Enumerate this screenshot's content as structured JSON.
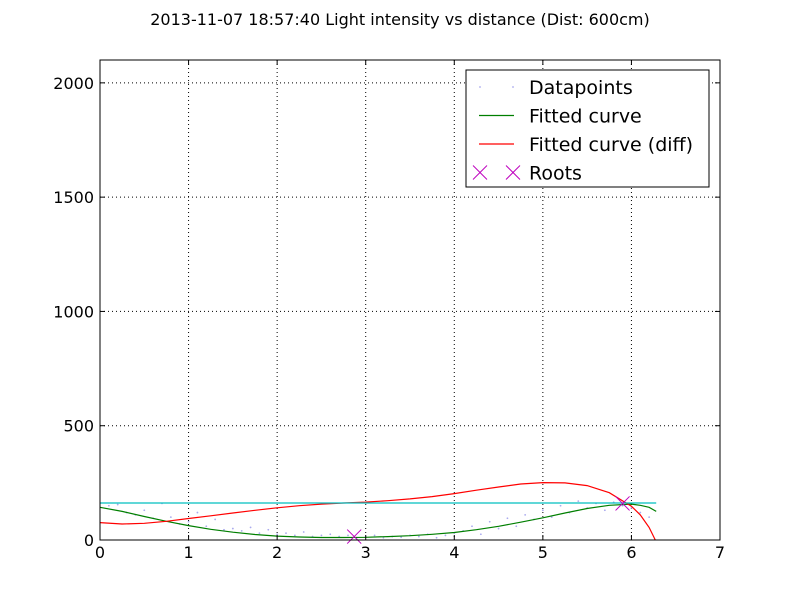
{
  "chart_data": {
    "type": "scatter",
    "title": "2013-11-07 18:57:40 Light intensity vs distance (Dist: 600cm)",
    "xlabel": "",
    "ylabel": "",
    "xlim": [
      0,
      7
    ],
    "ylim": [
      0,
      2100
    ],
    "xticks": [
      0,
      1,
      2,
      3,
      4,
      5,
      6,
      7
    ],
    "yticks": [
      0,
      500,
      1000,
      1500,
      2000
    ],
    "xtick_labels": [
      "0",
      "1",
      "2",
      "3",
      "4",
      "5",
      "6",
      "7"
    ],
    "ytick_labels": [
      "0",
      "500",
      "1000",
      "1500",
      "2000"
    ],
    "grid": true,
    "legend_position": "top-right",
    "series": [
      {
        "name": "Datapoints",
        "kind": "scatter",
        "color": "#aaaaee",
        "x": [
          0.1,
          0.2,
          0.3,
          0.4,
          0.5,
          0.6,
          0.7,
          0.8,
          0.9,
          1.0,
          1.1,
          1.2,
          1.3,
          1.4,
          1.5,
          1.6,
          1.7,
          1.8,
          1.9,
          2.0,
          2.1,
          2.2,
          2.3,
          2.4,
          2.5,
          2.6,
          2.7,
          2.8,
          2.9,
          3.0,
          3.1,
          3.2,
          3.3,
          3.4,
          3.5,
          3.6,
          3.7,
          3.8,
          3.9,
          4.0,
          4.1,
          4.2,
          4.3,
          4.4,
          4.5,
          4.6,
          4.7,
          4.8,
          4.9,
          5.0,
          5.1,
          5.2,
          5.3,
          5.4,
          5.5,
          5.6,
          5.7,
          5.8,
          5.9,
          6.0,
          6.1,
          6.2
        ],
        "y": [
          150,
          155,
          120,
          110,
          130,
          95,
          160,
          100,
          70,
          80,
          120,
          60,
          90,
          45,
          50,
          40,
          55,
          30,
          45,
          25,
          30,
          20,
          35,
          15,
          20,
          25,
          15,
          20,
          10,
          15,
          20,
          10,
          15,
          12,
          20,
          15,
          25,
          10,
          20,
          30,
          40,
          60,
          25,
          80,
          50,
          95,
          60,
          110,
          90,
          130,
          100,
          150,
          120,
          170,
          140,
          160,
          130,
          165,
          150,
          140,
          120,
          100
        ]
      },
      {
        "name": "Fitted curve",
        "kind": "line",
        "color": "#007f00",
        "x": [
          0.0,
          0.25,
          0.5,
          0.75,
          1.0,
          1.25,
          1.5,
          1.75,
          2.0,
          2.25,
          2.5,
          2.75,
          3.0,
          3.25,
          3.5,
          3.75,
          4.0,
          4.25,
          4.5,
          4.75,
          5.0,
          5.25,
          5.5,
          5.75,
          6.0,
          6.1,
          6.2,
          6.28
        ],
        "y": [
          143,
          125,
          103,
          82,
          63,
          47,
          34,
          24,
          17,
          13,
          11,
          11,
          12,
          15,
          19,
          25,
          33,
          45,
          60,
          78,
          97,
          118,
          138,
          152,
          157,
          152,
          143,
          125
        ]
      },
      {
        "name": "Fitted curve (diff)",
        "kind": "line",
        "color": "#ff0000",
        "x": [
          0.0,
          0.25,
          0.5,
          0.75,
          1.0,
          1.25,
          1.5,
          1.75,
          2.0,
          2.25,
          2.5,
          2.75,
          3.0,
          3.25,
          3.5,
          3.75,
          4.0,
          4.25,
          4.5,
          4.75,
          5.0,
          5.25,
          5.5,
          5.75,
          6.0,
          6.1,
          6.2,
          6.27
        ],
        "y": [
          76,
          70,
          73,
          82,
          94,
          106,
          118,
          130,
          141,
          150,
          157,
          162,
          166,
          172,
          180,
          190,
          203,
          218,
          232,
          245,
          251,
          250,
          238,
          207,
          148,
          110,
          55,
          0
        ]
      },
      {
        "name": "",
        "kind": "line",
        "color": "#00bfbf",
        "x": [
          0.0,
          6.28
        ],
        "y": [
          162,
          162
        ]
      },
      {
        "name": "Roots",
        "kind": "marker",
        "color": "#bf00bf",
        "x": [
          2.87,
          5.9
        ],
        "y": [
          15,
          160
        ]
      }
    ]
  }
}
